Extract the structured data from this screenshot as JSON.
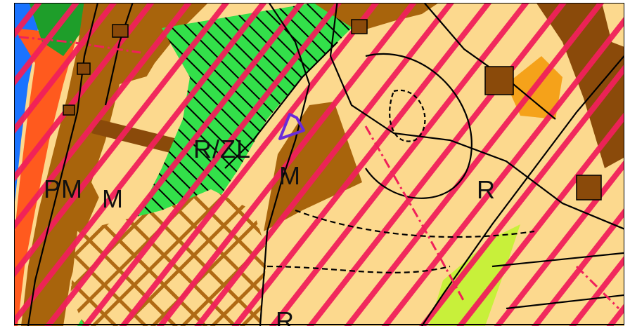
{
  "map": {
    "zone_labels": {
      "r_zl": "R/ZL",
      "m_center": "M",
      "r_east": "R",
      "pm": "PM",
      "m_west": "M",
      "r_bottom": "R"
    },
    "colors": {
      "arable_light": "#fcd98e",
      "brown_zone": "#a8640c",
      "dark_brown_band": "#8a4a0a",
      "green_zone": "#33e04a",
      "dark_green": "#1e9e2a",
      "water": "#1a73ff",
      "red_hatch": "#f0205a",
      "orange_zone": "#f5a21a",
      "lime_zone": "#c8f03a",
      "orange_red": "#ff5a1e",
      "selection_outline": "#6a2bd9",
      "line_black": "#000000"
    }
  }
}
